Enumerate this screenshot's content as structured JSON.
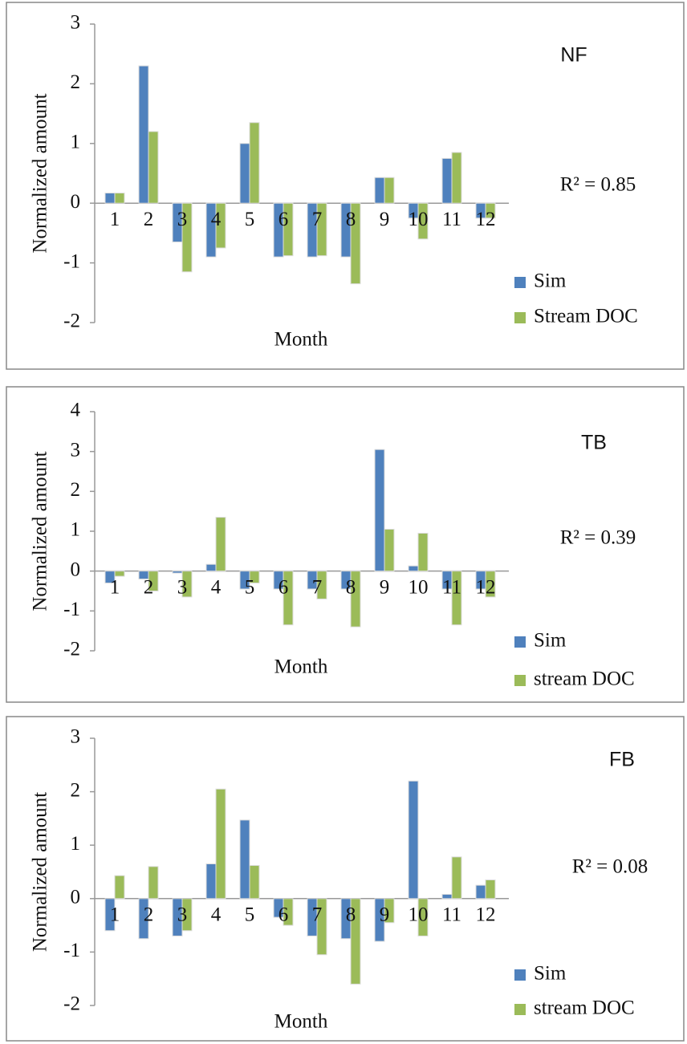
{
  "chart_data": [
    {
      "type": "bar",
      "title": "NF",
      "annotation": "R² = 0.85",
      "x_label": "Month",
      "y_label": "Normalized amount",
      "categories": [
        "1",
        "2",
        "3",
        "4",
        "5",
        "6",
        "7",
        "8",
        "9",
        "10",
        "11",
        "12"
      ],
      "series": [
        {
          "name": "Sim",
          "color": "#4f81bd",
          "values": [
            0.17,
            2.3,
            -0.65,
            -0.9,
            1.0,
            -0.9,
            -0.9,
            -0.9,
            0.43,
            -0.25,
            0.75,
            -0.25
          ]
        },
        {
          "name": "Stream  DOC",
          "color": "#9bbb59",
          "values": [
            0.17,
            1.2,
            -1.15,
            -0.75,
            1.35,
            -0.88,
            -0.88,
            -1.35,
            0.43,
            -0.6,
            0.85,
            -0.25
          ]
        }
      ],
      "ylim": [
        -2,
        3
      ],
      "yticks": [
        -2,
        -1,
        0,
        1,
        2,
        3
      ],
      "grid": false
    },
    {
      "type": "bar",
      "title": "TB",
      "annotation": "R² = 0.39",
      "x_label": "Month",
      "y_label": "Normalized amount",
      "categories": [
        "1",
        "2",
        "3",
        "4",
        "5",
        "6",
        "7",
        "8",
        "9",
        "10",
        "11",
        "12"
      ],
      "series": [
        {
          "name": "Sim",
          "color": "#4f81bd",
          "values": [
            -0.3,
            -0.2,
            -0.05,
            0.17,
            -0.45,
            -0.45,
            -0.45,
            -0.45,
            3.05,
            0.13,
            -0.45,
            -0.45
          ]
        },
        {
          "name": "stream DOC",
          "color": "#9bbb59",
          "values": [
            -0.13,
            -0.5,
            -0.65,
            1.35,
            -0.3,
            -1.35,
            -0.7,
            -1.4,
            1.05,
            0.95,
            -1.35,
            -0.65
          ]
        }
      ],
      "ylim": [
        -2,
        4
      ],
      "yticks": [
        -2,
        -1,
        0,
        1,
        2,
        3,
        4
      ],
      "grid": false
    },
    {
      "type": "bar",
      "title": "FB",
      "annotation": "R² = 0.08",
      "x_label": "Month",
      "y_label": "Normalized amount",
      "categories": [
        "1",
        "2",
        "3",
        "4",
        "5",
        "6",
        "7",
        "8",
        "9",
        "10",
        "11",
        "12"
      ],
      "series": [
        {
          "name": "Sim",
          "color": "#4f81bd",
          "values": [
            -0.6,
            -0.75,
            -0.7,
            0.65,
            1.47,
            -0.35,
            -0.7,
            -0.75,
            -0.8,
            2.2,
            0.08,
            0.25
          ]
        },
        {
          "name": "stream DOC",
          "color": "#9bbb59",
          "values": [
            0.43,
            0.6,
            -0.6,
            2.05,
            0.62,
            -0.5,
            -1.05,
            -1.6,
            -0.45,
            -0.7,
            0.78,
            0.35
          ]
        }
      ],
      "ylim": [
        -2,
        3
      ],
      "yticks": [
        -2,
        -1,
        0,
        1,
        2,
        3
      ],
      "grid": false
    }
  ]
}
